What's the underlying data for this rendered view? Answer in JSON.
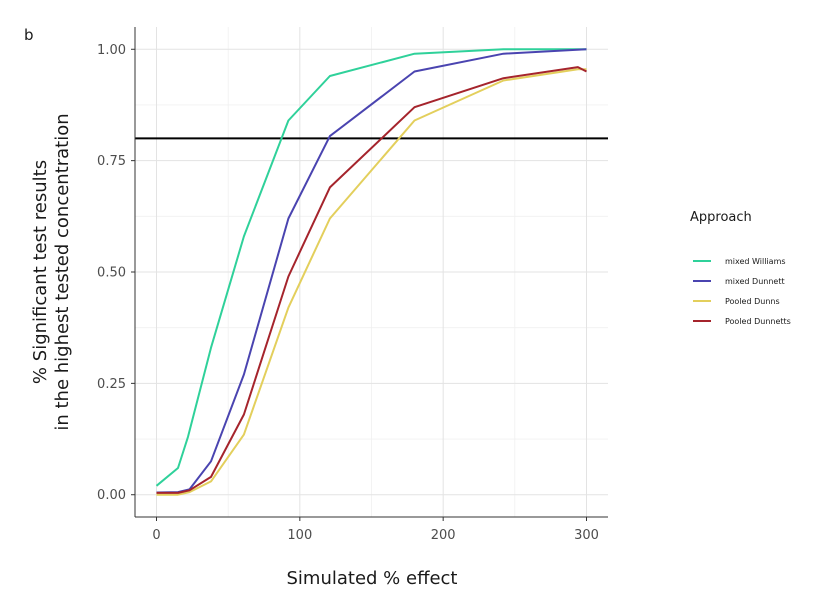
{
  "panel_label": "b",
  "chart_data": {
    "type": "line",
    "xlabel": "Simulated % effect",
    "ylabel_lines": [
      "% Significant test results",
      "in the highest tested concentration"
    ],
    "xlim": [
      -15,
      315
    ],
    "ylim": [
      -0.05,
      1.05
    ],
    "x_ticks": [
      0,
      100,
      200,
      300
    ],
    "x_tick_labels": [
      "0",
      "100",
      "200",
      "300"
    ],
    "y_ticks": [
      0,
      0.25,
      0.5,
      0.75,
      1.0
    ],
    "y_tick_labels": [
      "0.00",
      "0.25",
      "0.50",
      "0.75",
      "1.00"
    ],
    "grid": true,
    "hline": 0.8,
    "legend_title": "Approach",
    "legend_position": "right",
    "series": [
      {
        "name": "mixed Williams",
        "color": "#2fd19a",
        "x": [
          0,
          15,
          22,
          38,
          61,
          92,
          121,
          180,
          242,
          300
        ],
        "y": [
          0.02,
          0.06,
          0.13,
          0.33,
          0.58,
          0.84,
          0.94,
          0.99,
          1.0,
          1.0
        ]
      },
      {
        "name": "mixed Dunnett",
        "color": "#4a44b0",
        "x": [
          0,
          15,
          23,
          38,
          61,
          92,
          121,
          180,
          242,
          300
        ],
        "y": [
          0.005,
          0.006,
          0.012,
          0.075,
          0.27,
          0.62,
          0.805,
          0.95,
          0.99,
          1.0
        ]
      },
      {
        "name": "Pooled Dunns",
        "color": "#e3cf5c",
        "x": [
          0,
          15,
          23,
          38,
          61,
          92,
          121,
          180,
          242,
          294,
          300
        ],
        "y": [
          0.0,
          0.0,
          0.006,
          0.03,
          0.135,
          0.42,
          0.62,
          0.84,
          0.93,
          0.955,
          0.955
        ]
      },
      {
        "name": "Pooled Dunnetts",
        "color": "#a5242c",
        "x": [
          0,
          15,
          23,
          38,
          61,
          92,
          121,
          180,
          242,
          294,
          300
        ],
        "y": [
          0.004,
          0.004,
          0.01,
          0.04,
          0.18,
          0.49,
          0.69,
          0.87,
          0.935,
          0.96,
          0.95
        ]
      }
    ]
  }
}
